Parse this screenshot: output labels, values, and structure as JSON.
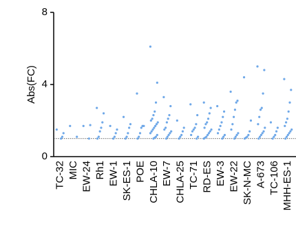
{
  "chart_data": {
    "type": "scatter",
    "y_label": "Abs(FC)",
    "categories": [
      "TC-32",
      "MIC",
      "EW-24",
      "Rh1",
      "EW-1",
      "SK-ES-1",
      "POE",
      "CHLA-10",
      "EW-7",
      "CHLA-25",
      "TC-71",
      "RD-ES",
      "EW-3",
      "EW-22",
      "SK-N-MC",
      "A-673",
      "TC-106",
      "MHH-ES-1"
    ],
    "values": [
      [
        1.5,
        1.3,
        1.1,
        1.0
      ],
      [
        1.7,
        1.1
      ],
      [
        1.7,
        1.75,
        1.0
      ],
      [
        2.7,
        2.4,
        1.9,
        1.6,
        1.4,
        1.1,
        1.0
      ],
      [
        1.7,
        1.5,
        1.3,
        1.1,
        1.0
      ],
      [
        2.2,
        1.8,
        1.6,
        1.3,
        1.1,
        1.0
      ],
      [
        3.5,
        1.7,
        1.7,
        1.6,
        1.3,
        1.1,
        1.0
      ],
      [
        6.1,
        4.1,
        3.0,
        2.5,
        2.3,
        2.1,
        2.0,
        1.9,
        1.8,
        1.7,
        1.6,
        1.5,
        1.4,
        1.3,
        1.2,
        1.1,
        1.05,
        1.0
      ],
      [
        3.3,
        2.8,
        2.3,
        2.1,
        1.9,
        1.6,
        1.5,
        1.4,
        1.3,
        1.2,
        1.1,
        1.0
      ],
      [
        2.0,
        1.6,
        1.4,
        1.2,
        1.1,
        1.0
      ],
      [
        2.9,
        2.3,
        1.8,
        1.6,
        1.5,
        1.4,
        1.2,
        1.1,
        1.0
      ],
      [
        3.0,
        2.7,
        2.4,
        2.1,
        1.9,
        1.8,
        1.6,
        1.5,
        1.4,
        1.3,
        1.2,
        1.1,
        1.05,
        1.0
      ],
      [
        2.8,
        2.5,
        2.2,
        1.9,
        1.7,
        1.5,
        1.3,
        1.2,
        1.1,
        1.0
      ],
      [
        3.6,
        3.1,
        3.0,
        2.6,
        2.2,
        1.8,
        1.5,
        1.3,
        1.2,
        1.1,
        1.0
      ],
      [
        4.4,
        2.0,
        1.4,
        1.2,
        1.1,
        1.05,
        1.0
      ],
      [
        5.0,
        4.8,
        3.5,
        2.7,
        2.6,
        2.2,
        1.8,
        1.6,
        1.4,
        1.3,
        1.2,
        1.1,
        1.0
      ],
      [
        1.9,
        1.6,
        1.4,
        1.2,
        1.1,
        1.0
      ],
      [
        4.3,
        3.7,
        3.0,
        2.5,
        2.1,
        1.9,
        1.7,
        1.5,
        1.4,
        1.3,
        1.2,
        1.1,
        1.0
      ]
    ],
    "color": "#6fa8e8",
    "reference_line": 1,
    "ylim": [
      0,
      8
    ],
    "yticks": [
      0,
      4,
      8
    ]
  }
}
